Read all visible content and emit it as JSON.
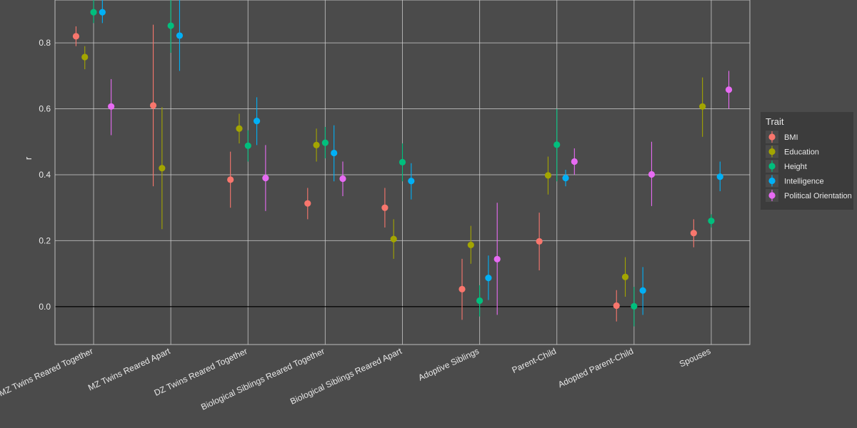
{
  "chart_data": {
    "type": "scatter",
    "title": "",
    "xlabel": "",
    "ylabel": "r",
    "ylim": [
      -0.115,
      0.93
    ],
    "yticks": [
      0.0,
      0.2,
      0.4,
      0.6,
      0.8
    ],
    "ytick_labels": [
      "0.0",
      "0.2",
      "0.4",
      "0.6",
      "0.8"
    ],
    "grid": true,
    "legend_position": "right",
    "legend_title": "Trait",
    "categories": [
      "MZ Twins Reared Together",
      "MZ Twins Reared Apart",
      "DZ Twins Reared Together",
      "Biological Siblings Reared Together",
      "Biological Siblings Reared Apart",
      "Adoptive Siblings",
      "Parent-Child",
      "Adopted Parent-Child",
      "Spouses"
    ],
    "series": [
      {
        "name": "BMI",
        "color": "#f8766d",
        "values": [
          0.82,
          0.61,
          0.385,
          0.313,
          0.3,
          0.053,
          0.198,
          0.003,
          0.223
        ],
        "lower": [
          0.79,
          0.365,
          0.3,
          0.265,
          0.24,
          -0.04,
          0.11,
          -0.045,
          0.18
        ],
        "upper": [
          0.85,
          0.855,
          0.47,
          0.36,
          0.36,
          0.145,
          0.285,
          0.05,
          0.265
        ]
      },
      {
        "name": "Education",
        "color": "#a3a500",
        "values": [
          0.757,
          0.42,
          0.54,
          0.49,
          0.205,
          0.187,
          0.398,
          0.09,
          0.607
        ],
        "lower": [
          0.72,
          0.235,
          0.495,
          0.44,
          0.145,
          0.13,
          0.34,
          0.03,
          0.515
        ],
        "upper": [
          0.79,
          0.605,
          0.585,
          0.54,
          0.265,
          0.245,
          0.455,
          0.15,
          0.695
        ]
      },
      {
        "name": "Height",
        "color": "#00bf7d",
        "values": [
          0.893,
          0.852,
          0.488,
          0.497,
          0.438,
          0.018,
          0.491,
          0.001,
          0.26
        ],
        "lower": [
          0.86,
          0.77,
          0.44,
          0.45,
          0.38,
          -0.03,
          0.38,
          -0.06,
          0.24
        ],
        "upper": [
          0.93,
          0.93,
          0.535,
          0.545,
          0.495,
          0.065,
          0.6,
          0.06,
          0.28
        ]
      },
      {
        "name": "Intelligence",
        "color": "#00b0f6",
        "values": [
          0.893,
          0.822,
          0.563,
          0.466,
          0.381,
          0.087,
          0.39,
          0.049,
          0.394
        ],
        "lower": [
          0.86,
          0.715,
          0.49,
          0.38,
          0.325,
          0.02,
          0.365,
          -0.025,
          0.35
        ],
        "upper": [
          0.93,
          0.93,
          0.635,
          0.55,
          0.435,
          0.155,
          0.415,
          0.12,
          0.44
        ]
      },
      {
        "name": "Political Orientation",
        "color": "#e76bf3",
        "values": [
          0.607,
          null,
          0.39,
          0.388,
          null,
          0.144,
          0.44,
          0.401,
          0.658
        ],
        "lower": [
          0.52,
          null,
          0.29,
          0.335,
          null,
          -0.025,
          0.4,
          0.305,
          0.6
        ],
        "upper": [
          0.69,
          null,
          0.49,
          0.44,
          null,
          0.315,
          0.48,
          0.5,
          0.715
        ]
      }
    ]
  },
  "colors": {
    "background": "#4b4b4b",
    "grid": "#d0d0d0",
    "zero_line": "#000000",
    "text": "#e8e8e8",
    "legend_bg": "#3c3c3c"
  }
}
